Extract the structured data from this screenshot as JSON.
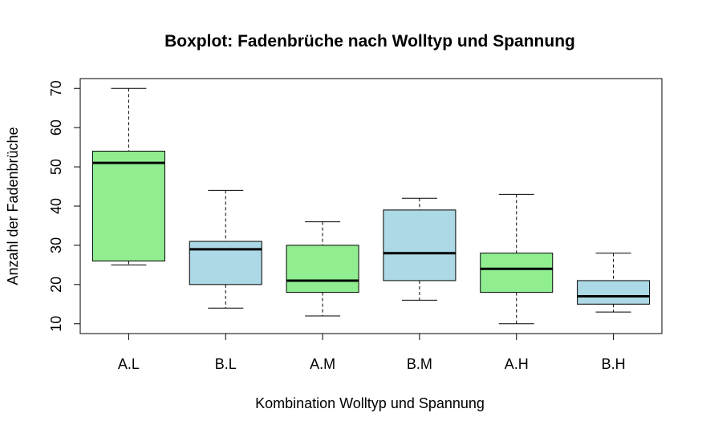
{
  "chart_data": {
    "type": "boxplot",
    "title": "Boxplot: Fadenbrüche nach Wolltyp und Spannung",
    "xlabel": "Kombination Wolltyp und Spannung",
    "ylabel": "Anzahl der Fadenbrüche",
    "ylim": [
      7.5,
      72.5
    ],
    "yticks": [
      "10",
      "20",
      "30",
      "40",
      "50",
      "60",
      "70"
    ],
    "categories": [
      "A.L",
      "B.L",
      "A.M",
      "B.M",
      "A.H",
      "B.H"
    ],
    "colors": [
      "#90ee90",
      "#add8e6",
      "#90ee90",
      "#add8e6",
      "#90ee90",
      "#add8e6"
    ],
    "boxes": [
      {
        "min": 25,
        "q1": 26,
        "median": 51,
        "q3": 54,
        "max": 70
      },
      {
        "min": 14,
        "q1": 20,
        "median": 29,
        "q3": 31,
        "max": 44
      },
      {
        "min": 12,
        "q1": 18,
        "median": 21,
        "q3": 30,
        "max": 36
      },
      {
        "min": 16,
        "q1": 21,
        "median": 28,
        "q3": 39,
        "max": 42
      },
      {
        "min": 10,
        "q1": 18,
        "median": 24,
        "q3": 28,
        "max": 43
      },
      {
        "min": 13,
        "q1": 15,
        "median": 17,
        "q3": 21,
        "max": 28
      }
    ]
  }
}
